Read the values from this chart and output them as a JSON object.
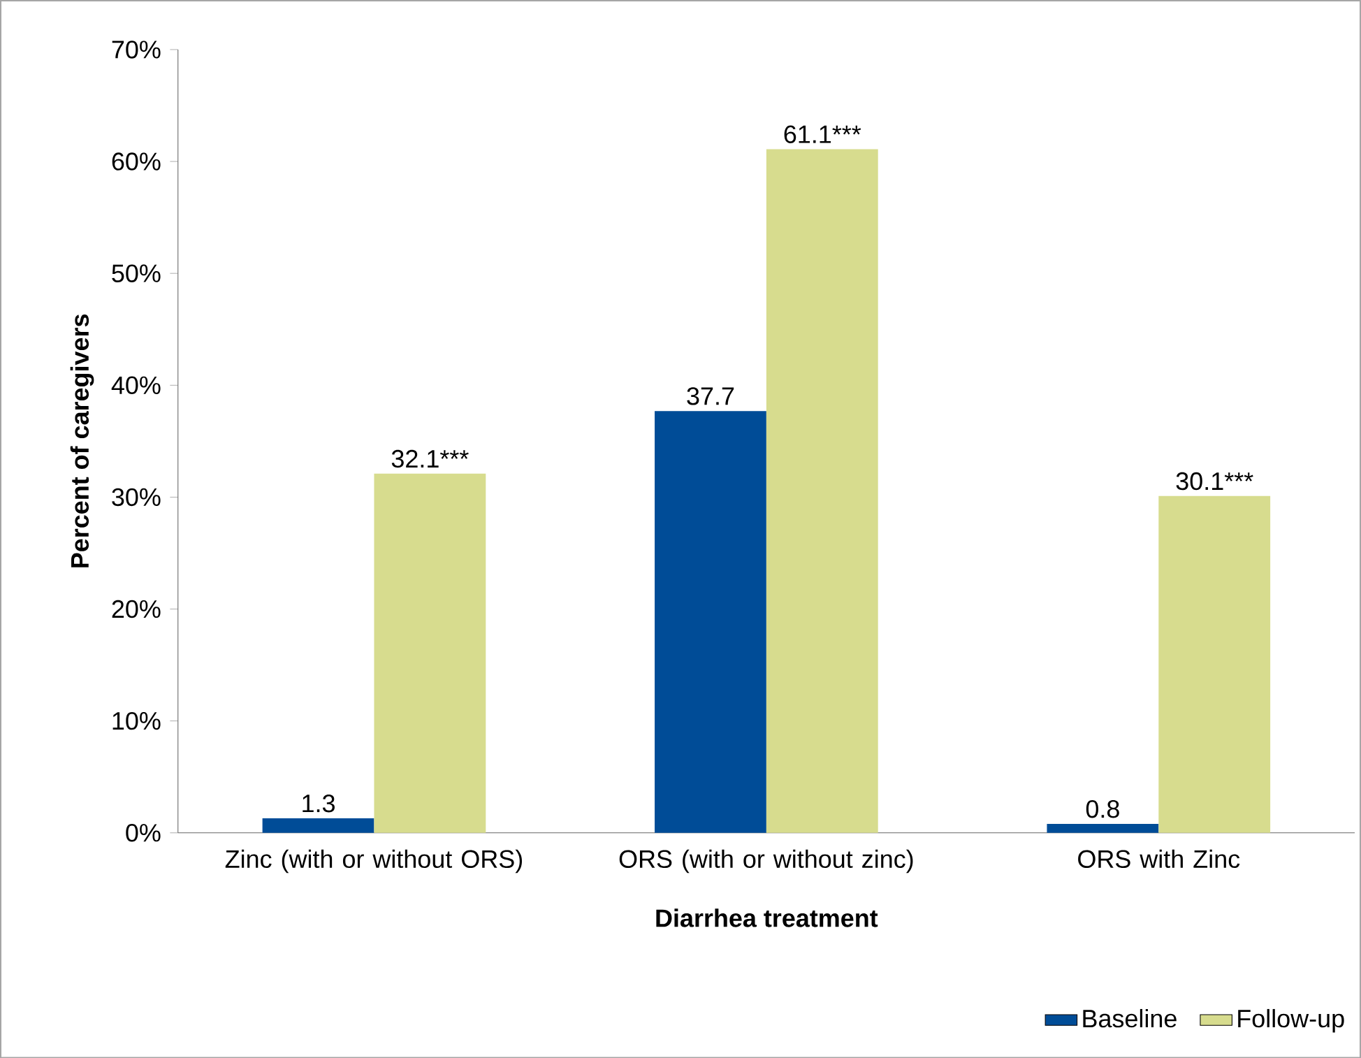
{
  "chart_data": {
    "type": "bar",
    "xlabel": "Diarrhea treatment",
    "ylabel": "Percent of caregivers",
    "categories": [
      "Zinc (with or without ORS)",
      "ORS (with or without zinc)",
      "ORS with Zinc"
    ],
    "series": [
      {
        "name": "Baseline",
        "color": "#004c97",
        "values": [
          1.3,
          37.7,
          0.8
        ],
        "value_labels": [
          "1.3",
          "37.7",
          "0.8"
        ]
      },
      {
        "name": "Follow-up",
        "color": "#d7dc8e",
        "values": [
          32.1,
          61.1,
          30.1
        ],
        "value_labels": [
          "32.1***",
          "61.1***",
          "30.1***"
        ]
      }
    ],
    "ylim": [
      0,
      70
    ],
    "yticks": [
      {
        "value": 0,
        "label": "0%"
      },
      {
        "value": 10,
        "label": "10%"
      },
      {
        "value": 20,
        "label": "20%"
      },
      {
        "value": 30,
        "label": "30%"
      },
      {
        "value": 40,
        "label": "40%"
      },
      {
        "value": 50,
        "label": "50%"
      },
      {
        "value": 60,
        "label": "60%"
      },
      {
        "value": 70,
        "label": "70%"
      }
    ],
    "legend": "bottom right"
  }
}
